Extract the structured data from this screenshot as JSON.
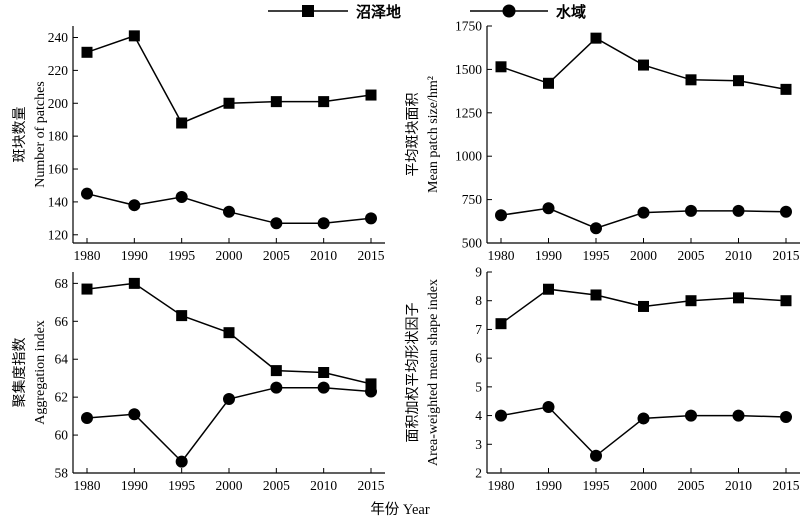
{
  "legend": [
    {
      "label": "沼泽地",
      "marker": "square"
    },
    {
      "label": "水域",
      "marker": "circle"
    }
  ],
  "xlabel": "年份 Year",
  "colors": {
    "line": "#000000"
  },
  "chart_data": [
    {
      "type": "line",
      "ylabel_cn": "斑块数量",
      "ylabel_en": "Number of patches",
      "x": [
        1980,
        1990,
        1995,
        2000,
        2005,
        2010,
        2015
      ],
      "yticks": [
        120,
        140,
        160,
        180,
        200,
        220,
        240
      ],
      "ylim": [
        115,
        247
      ],
      "series": [
        {
          "name": "沼泽地",
          "marker": "square",
          "values": [
            231,
            241,
            188,
            200,
            201,
            201,
            205
          ]
        },
        {
          "name": "水域",
          "marker": "circle",
          "values": [
            145,
            138,
            143,
            134,
            127,
            127,
            130
          ]
        }
      ]
    },
    {
      "type": "line",
      "ylabel_cn": "平均斑块面积",
      "ylabel_en": "Mean patch size/hm²",
      "x": [
        1980,
        1990,
        1995,
        2000,
        2005,
        2010,
        2015
      ],
      "yticks": [
        500,
        750,
        1000,
        1250,
        1500,
        1750
      ],
      "ylim": [
        500,
        1750
      ],
      "series": [
        {
          "name": "沼泽地",
          "marker": "square",
          "values": [
            1515,
            1420,
            1680,
            1525,
            1440,
            1435,
            1385
          ]
        },
        {
          "name": "水域",
          "marker": "circle",
          "values": [
            660,
            700,
            585,
            675,
            685,
            685,
            680
          ]
        }
      ]
    },
    {
      "type": "line",
      "ylabel_cn": "聚集度指数",
      "ylabel_en": "Aggregation index",
      "x": [
        1980,
        1990,
        1995,
        2000,
        2005,
        2010,
        2015
      ],
      "yticks": [
        58,
        60,
        62,
        64,
        66,
        68
      ],
      "ylim": [
        58,
        68.6
      ],
      "series": [
        {
          "name": "沼泽地",
          "marker": "square",
          "values": [
            67.7,
            68.0,
            66.3,
            65.4,
            63.4,
            63.3,
            62.7
          ]
        },
        {
          "name": "水域",
          "marker": "circle",
          "values": [
            60.9,
            61.1,
            58.6,
            61.9,
            62.5,
            62.5,
            62.3
          ]
        }
      ]
    },
    {
      "type": "line",
      "ylabel_cn": "面积加权平均形状因子",
      "ylabel_en": "Area-weighted mean shape index",
      "x": [
        1980,
        1990,
        1995,
        2000,
        2005,
        2010,
        2015
      ],
      "yticks": [
        2,
        3,
        4,
        5,
        6,
        7,
        8,
        9
      ],
      "ylim": [
        2,
        9
      ],
      "series": [
        {
          "name": "沼泽地",
          "marker": "square",
          "values": [
            7.2,
            8.4,
            8.2,
            7.8,
            8.0,
            8.1,
            8.0
          ]
        },
        {
          "name": "水域",
          "marker": "circle",
          "values": [
            4.0,
            4.3,
            2.6,
            3.9,
            4.0,
            4.0,
            3.95
          ]
        }
      ]
    }
  ]
}
